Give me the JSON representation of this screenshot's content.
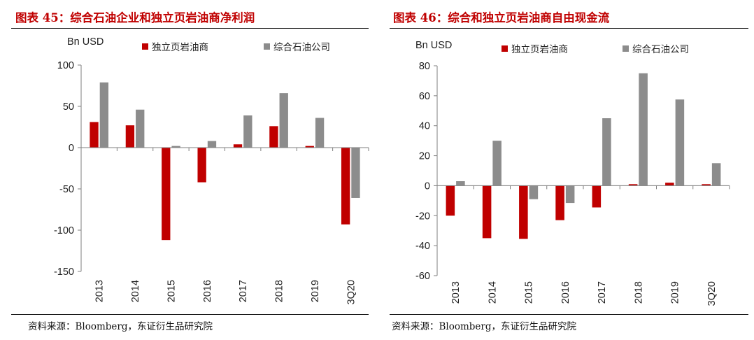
{
  "panels": [
    {
      "title": "图表 45：综合石油企业和独立页岩油商净利润",
      "source": "资料来源：Bloomberg，东证衍生品研究院"
    },
    {
      "title": "图表 46：综合和独立页岩油商自由现金流",
      "source": "资料来源：Bloomberg，东证衍生品研究院"
    }
  ],
  "colors": {
    "independent": "#c00000",
    "integrated": "#8c8c8c",
    "title": "#c00000"
  },
  "chart_data": [
    {
      "type": "bar",
      "ylabel": "Bn USD",
      "ylim": [
        -150,
        100
      ],
      "yticks": [
        100,
        50,
        0,
        -50,
        -100,
        -150
      ],
      "categories": [
        "2013",
        "2014",
        "2015",
        "2016",
        "2017",
        "2018",
        "2019",
        "3Q20"
      ],
      "series": [
        {
          "name": "独立页岩油商",
          "values": [
            31,
            27,
            -112,
            -42,
            4,
            26,
            2,
            -93
          ]
        },
        {
          "name": "综合石油公司",
          "values": [
            79,
            46,
            2,
            8,
            39,
            66,
            36,
            -61
          ]
        }
      ],
      "legend": "top"
    },
    {
      "type": "bar",
      "ylabel": "Bn USD",
      "ylim": [
        -60,
        80
      ],
      "yticks": [
        80,
        60,
        40,
        20,
        0,
        -20,
        -40,
        -60
      ],
      "categories": [
        "2013",
        "2014",
        "2015",
        "2016",
        "2017",
        "2018",
        "2019",
        "3Q20"
      ],
      "series": [
        {
          "name": "独立页岩油商",
          "values": [
            -20,
            -35,
            -35.5,
            -23,
            -14.5,
            1,
            2,
            1
          ]
        },
        {
          "name": "综合石油公司",
          "values": [
            3,
            30,
            -9,
            -11.5,
            45,
            75,
            57.5,
            15
          ]
        }
      ],
      "legend": "top"
    }
  ]
}
